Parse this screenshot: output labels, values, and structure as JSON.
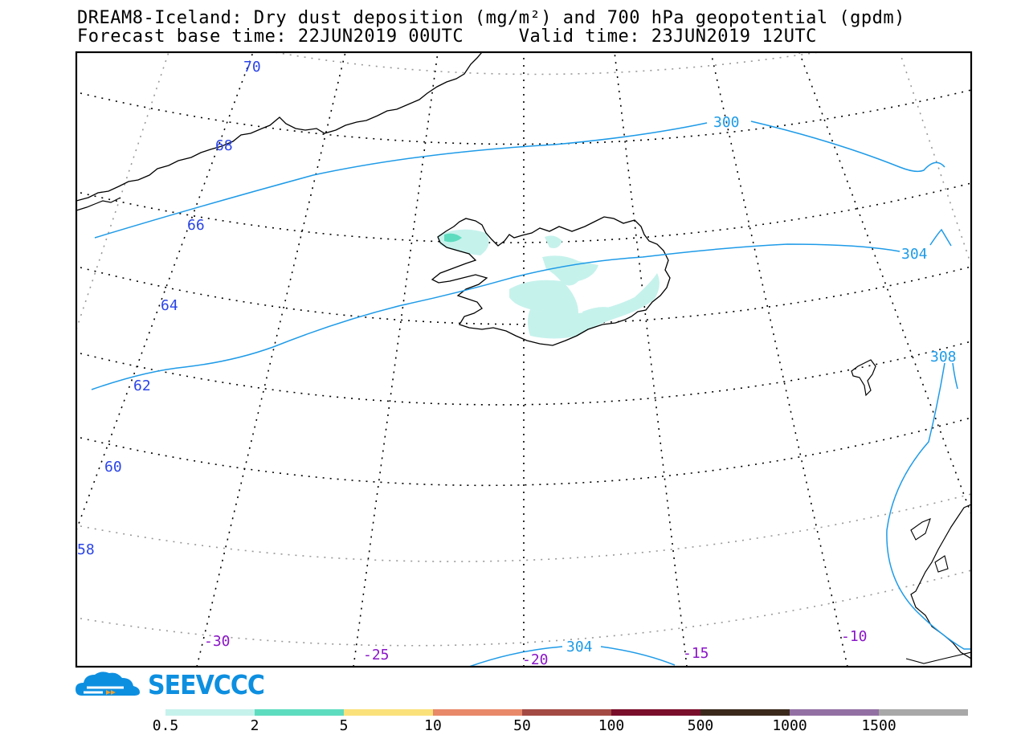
{
  "title": {
    "line1": "DREAM8-Iceland: Dry dust deposition (mg/m²) and 700 hPa geopotential (gpdm)",
    "line2": "Forecast base time: 22JUN2019 00UTC     Valid time: 23JUN2019 12UTC"
  },
  "map": {
    "lat_labels": [
      "70",
      "68",
      "66",
      "64",
      "62",
      "60",
      "58"
    ],
    "lon_labels": [
      "-30",
      "-25",
      "-20",
      "-15",
      "-10"
    ],
    "contour_labels": [
      "300",
      "304",
      "308",
      "304"
    ],
    "colors": {
      "contour": "#1e9be8",
      "lat_label": "#2a44e8",
      "lon_label": "#8a16c8",
      "dust_low": "#c6f2ec",
      "dust_mid": "#5edcbf"
    }
  },
  "logo": {
    "text": "SEEVCCC",
    "icon": "cloud-logo-icon"
  },
  "colorbar": {
    "colors": [
      "#c6f2ec",
      "#5edcbf",
      "#fae17a",
      "#e8896a",
      "#a44a44",
      "#7a0f2c",
      "#3b2a1c",
      "#9370a4",
      "#a8a8a8"
    ],
    "labels": [
      "0.5",
      "2",
      "5",
      "10",
      "50",
      "100",
      "500",
      "1000",
      "1500"
    ]
  }
}
